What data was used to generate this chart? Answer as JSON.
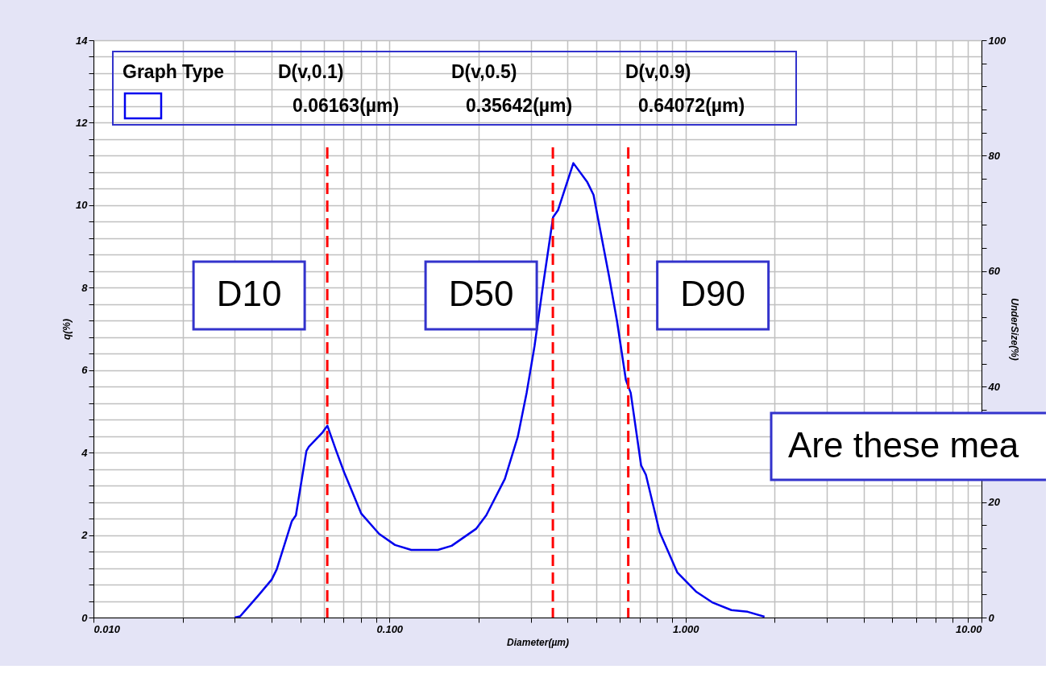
{
  "chart_data": {
    "type": "line",
    "xlabel": "Diameter(µm)",
    "ylabel": "q(%)",
    "y2label": "UnderSize(%)",
    "log": "x",
    "xlim": [
      0.01,
      10
    ],
    "xticks": [
      {
        "value": 0.01,
        "label": "0.010"
      },
      {
        "value": 0.02,
        "label": null
      },
      {
        "value": 0.03,
        "label": null
      },
      {
        "value": 0.04,
        "label": null
      },
      {
        "value": 0.05,
        "label": null
      },
      {
        "value": 0.06,
        "label": null
      },
      {
        "value": 0.07,
        "label": null
      },
      {
        "value": 0.08,
        "label": null
      },
      {
        "value": 0.09,
        "label": null
      },
      {
        "value": 0.1,
        "label": "0.100"
      },
      {
        "value": 0.2,
        "label": null
      },
      {
        "value": 0.3,
        "label": null
      },
      {
        "value": 0.4,
        "label": null
      },
      {
        "value": 0.5,
        "label": null
      },
      {
        "value": 0.6,
        "label": null
      },
      {
        "value": 0.7,
        "label": null
      },
      {
        "value": 0.8,
        "label": null
      },
      {
        "value": 0.9,
        "label": null
      },
      {
        "value": 1,
        "label": "1.000"
      },
      {
        "value": 2,
        "label": null
      },
      {
        "value": 3,
        "label": null
      },
      {
        "value": 4,
        "label": null
      },
      {
        "value": 5,
        "label": null
      },
      {
        "value": 6,
        "label": null
      },
      {
        "value": 7,
        "label": null
      },
      {
        "value": 8,
        "label": null
      },
      {
        "value": 9,
        "label": null
      },
      {
        "value": 10,
        "label": "10.00"
      }
    ],
    "ylim": [
      0,
      14
    ],
    "yticks": [
      0,
      {
        "value": 0.4,
        "label": null
      },
      {
        "value": 0.8,
        "label": null
      },
      {
        "value": 1.2,
        "label": null
      },
      {
        "value": 1.6,
        "label": null
      },
      2,
      {
        "value": 2.4,
        "label": null
      },
      {
        "value": 2.8,
        "label": null
      },
      {
        "value": 3.2,
        "label": null
      },
      {
        "value": 3.6,
        "label": null
      },
      4,
      {
        "value": 4.4,
        "label": null
      },
      {
        "value": 4.8,
        "label": null
      },
      {
        "value": 5.2,
        "label": null
      },
      {
        "value": 5.6,
        "label": null
      },
      6,
      {
        "value": 6.4,
        "label": null
      },
      {
        "value": 6.8,
        "label": null
      },
      {
        "value": 7.2,
        "label": null
      },
      {
        "value": 7.6,
        "label": null
      },
      8,
      {
        "value": 8.4,
        "label": null
      },
      {
        "value": 8.8,
        "label": null
      },
      {
        "value": 9.2,
        "label": null
      },
      {
        "value": 9.6,
        "label": null
      },
      10,
      {
        "value": 10.4,
        "label": null
      },
      {
        "value": 10.8,
        "label": null
      },
      {
        "value": 11.2,
        "label": null
      },
      {
        "value": 11.6,
        "label": null
      },
      12,
      {
        "value": 12.4,
        "label": null
      },
      {
        "value": 12.8,
        "label": null
      },
      {
        "value": 13.2,
        "label": null
      },
      {
        "value": 13.6,
        "label": null
      },
      14
    ],
    "y2lim": [
      0,
      100
    ],
    "y2ticks": [
      0,
      {
        "value": 4,
        "label": null
      },
      {
        "value": 8,
        "label": null
      },
      {
        "value": 12,
        "label": null
      },
      {
        "value": 16,
        "label": null
      },
      20,
      {
        "value": 24,
        "label": null
      },
      {
        "value": 28,
        "label": null
      },
      {
        "value": 32,
        "label": null
      },
      {
        "value": 36,
        "label": null
      },
      40,
      {
        "value": 44,
        "label": null
      },
      {
        "value": 48,
        "label": null
      },
      {
        "value": 52,
        "label": null
      },
      {
        "value": 56,
        "label": null
      },
      60,
      {
        "value": 64,
        "label": null
      },
      {
        "value": 68,
        "label": null
      },
      {
        "value": 72,
        "label": null
      },
      {
        "value": 76,
        "label": null
      },
      80,
      {
        "value": 84,
        "label": null
      },
      {
        "value": 88,
        "label": null
      },
      {
        "value": 92,
        "label": null
      },
      {
        "value": 96,
        "label": null
      },
      100
    ],
    "grid": true,
    "legend": "top left",
    "series": [
      {
        "color": "#0000ee",
        "x": [
          0.03,
          0.0313,
          0.036,
          0.04,
          0.0416,
          0.0468,
          0.0483,
          0.0498,
          0.0524,
          0.0534,
          0.0594,
          0.0617,
          0.0661,
          0.0703,
          0.0803,
          0.0922,
          0.1044,
          0.1185,
          0.1457,
          0.1622,
          0.196,
          0.2123,
          0.2453,
          0.2712,
          0.2906,
          0.309,
          0.327,
          0.357,
          0.371,
          0.418,
          0.465,
          0.489,
          0.551,
          0.587,
          0.629,
          0.653,
          0.708,
          0.735,
          0.818,
          0.939,
          1.085,
          1.23,
          1.429,
          1.622,
          1.849
        ],
        "values": [
          0,
          0.03,
          0.53,
          0.92,
          1.17,
          2.34,
          2.48,
          3.07,
          4.04,
          4.14,
          4.49,
          4.65,
          4.04,
          3.52,
          2.52,
          2.03,
          1.76,
          1.64,
          1.64,
          1.74,
          2.15,
          2.48,
          3.36,
          4.38,
          5.45,
          6.58,
          7.85,
          9.71,
          9.88,
          11.02,
          10.57,
          10.25,
          8.3,
          7.19,
          5.76,
          5.45,
          3.69,
          3.46,
          2.07,
          1.09,
          0.63,
          0.37,
          0.18,
          0.14,
          0.02
        ]
      }
    ],
    "line_style": "solid",
    "ref_lines": [
      {
        "axis": "x",
        "value": 0.06163,
        "label": "D10",
        "color": "#ff0000",
        "line_style": "dashed"
      },
      {
        "axis": "x",
        "value": 0.35642,
        "label": "D50",
        "color": "#ff0000",
        "line_style": "dashed"
      },
      {
        "axis": "x",
        "value": 0.64072,
        "label": "D90",
        "color": "#ff0000",
        "line_style": "dashed"
      }
    ],
    "annotations": [
      "Graph Type",
      "D(v,0.1)",
      "D(v,0.5)",
      "D(v,0.9)",
      "0.06163(µm)",
      "0.35642(µm)",
      "0.64072(µm)",
      "Are these mea"
    ]
  }
}
